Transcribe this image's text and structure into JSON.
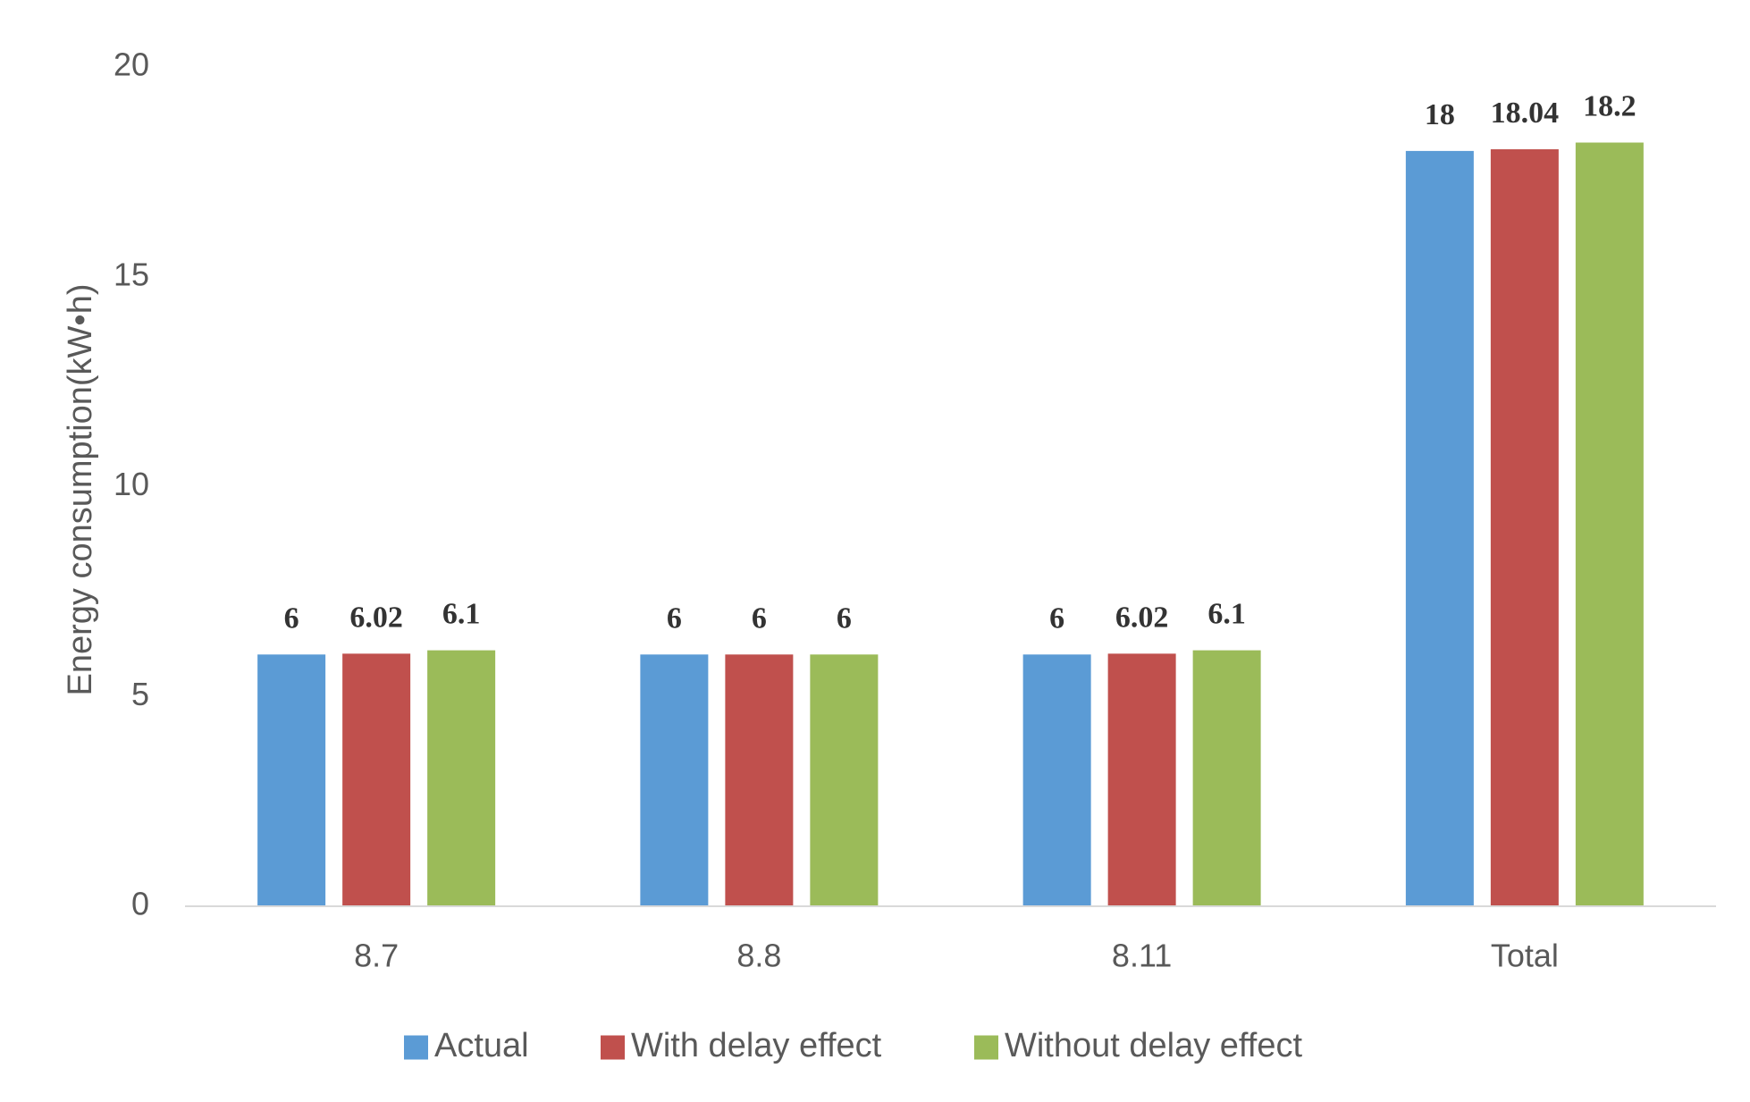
{
  "chart_data": {
    "type": "bar",
    "title": "",
    "xlabel": "",
    "ylabel": "Energy consumption(kW•h)",
    "ylim": [
      0,
      20
    ],
    "yticks": [
      0,
      5,
      10,
      15,
      20
    ],
    "grid": false,
    "legend_position": "bottom",
    "categories": [
      "8.7",
      "8.8",
      "8.11",
      "Total"
    ],
    "series": [
      {
        "name": "Actual",
        "color": "#5B9BD5",
        "values": [
          6,
          6,
          6,
          18
        ],
        "labels": [
          "6",
          "6",
          "6",
          "18"
        ]
      },
      {
        "name": "With delay effect",
        "color": "#C0504D",
        "values": [
          6.02,
          6,
          6.02,
          18.04
        ],
        "labels": [
          "6.02",
          "6",
          "6.02",
          "18.04"
        ]
      },
      {
        "name": "Without delay effect",
        "color": "#9BBB59",
        "values": [
          6.1,
          6,
          6.1,
          18.2
        ],
        "labels": [
          "6.1",
          "6",
          "6.1",
          "18.2"
        ]
      }
    ]
  }
}
